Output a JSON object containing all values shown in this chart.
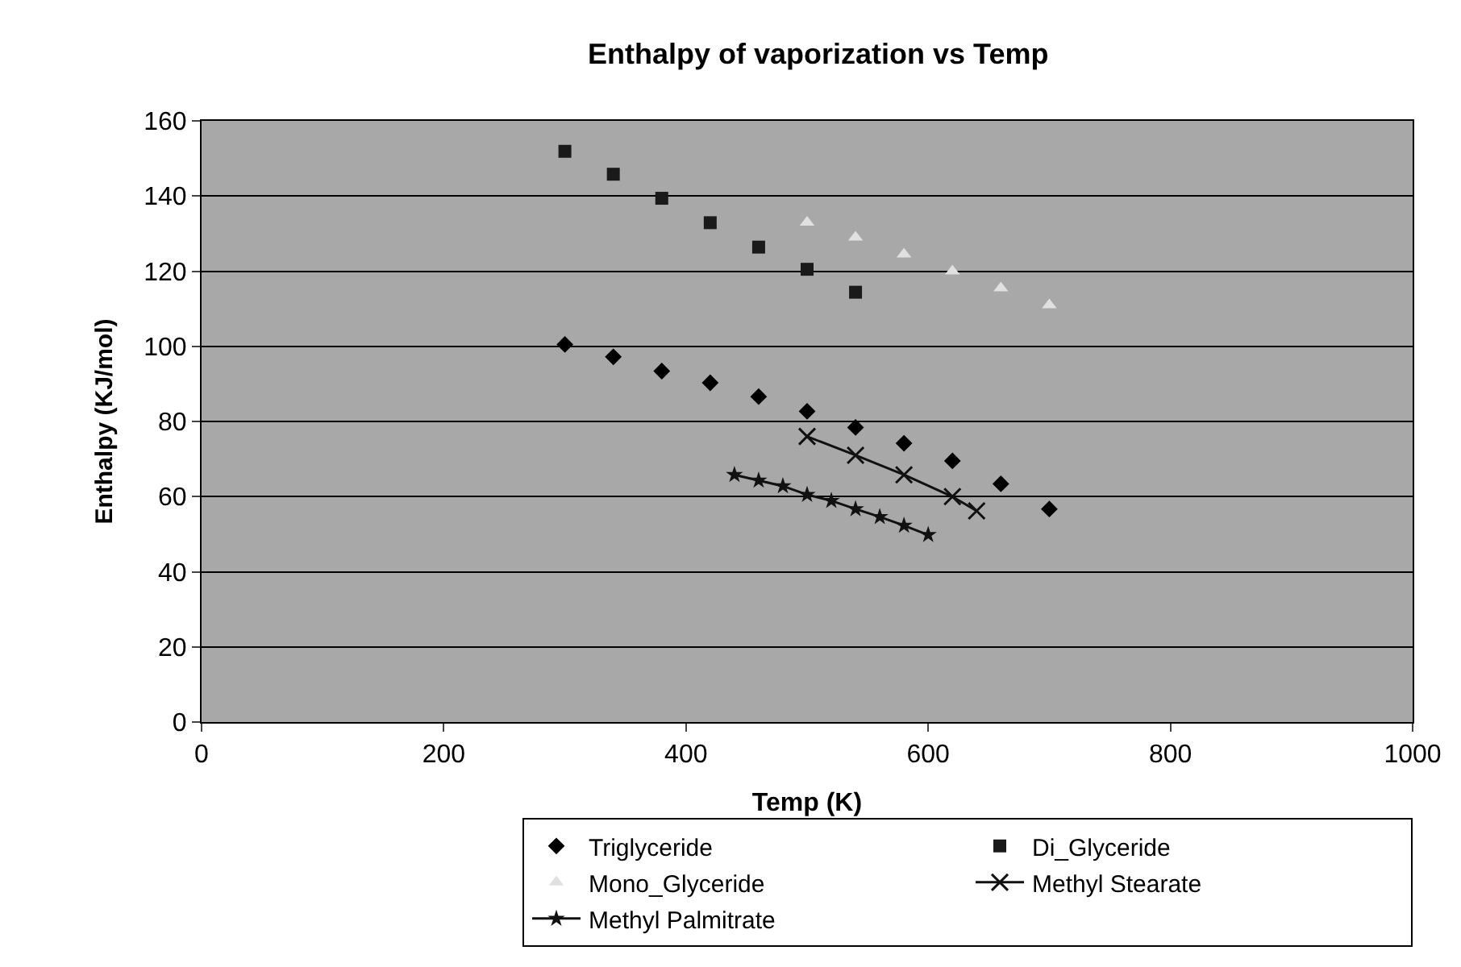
{
  "chart_data": {
    "type": "scatter",
    "title": "Enthalpy of vaporization vs Temp",
    "xlabel": "Temp (K)",
    "ylabel": "Enthalpy (KJ/mol)",
    "xlim": [
      0,
      1000
    ],
    "xticks": [
      0,
      200,
      400,
      600,
      800,
      1000
    ],
    "ylim": [
      0,
      160
    ],
    "yticks": [
      0,
      20,
      40,
      60,
      80,
      100,
      120,
      140,
      160
    ],
    "grid": "y",
    "legend": "bottom right",
    "series": [
      {
        "name": "Triglyceride",
        "color": "#000000",
        "marker": "diamond",
        "x": [
          300,
          340,
          380,
          420,
          460,
          500,
          540,
          580,
          620,
          660,
          700
        ],
        "values": [
          100.5,
          97.2,
          93.4,
          90.3,
          86.6,
          82.7,
          78.4,
          74.2,
          69.5,
          63.4,
          56.7
        ]
      },
      {
        "name": "Di_Glyceride",
        "color": "#1a1a1a",
        "marker": "square",
        "x": [
          300,
          340,
          380,
          420,
          460,
          500,
          540
        ],
        "values": [
          151.9,
          145.8,
          139.4,
          132.9,
          126.4,
          120.5,
          114.4
        ]
      },
      {
        "name": "Mono_Glyceride",
        "color": "#e0e0e0",
        "marker": "triangle",
        "x": [
          500,
          540,
          580,
          620,
          660,
          700
        ],
        "values": [
          133,
          129,
          124.5,
          120,
          115.5,
          111
        ]
      },
      {
        "name": "Methyl Stearate",
        "color": "#111111",
        "marker": "cross",
        "type": "line",
        "x": [
          500,
          540,
          580,
          620,
          640
        ],
        "values": [
          76,
          71,
          65.8,
          60,
          56.2
        ]
      },
      {
        "name": "Methyl Palmitrate",
        "color": "#111111",
        "marker": "star",
        "type": "line",
        "x": [
          440,
          460,
          480,
          500,
          520,
          540,
          560,
          580,
          600
        ],
        "values": [
          65.8,
          64.3,
          62.8,
          60.5,
          58.9,
          56.7,
          54.6,
          52.3,
          49.8
        ]
      }
    ]
  }
}
